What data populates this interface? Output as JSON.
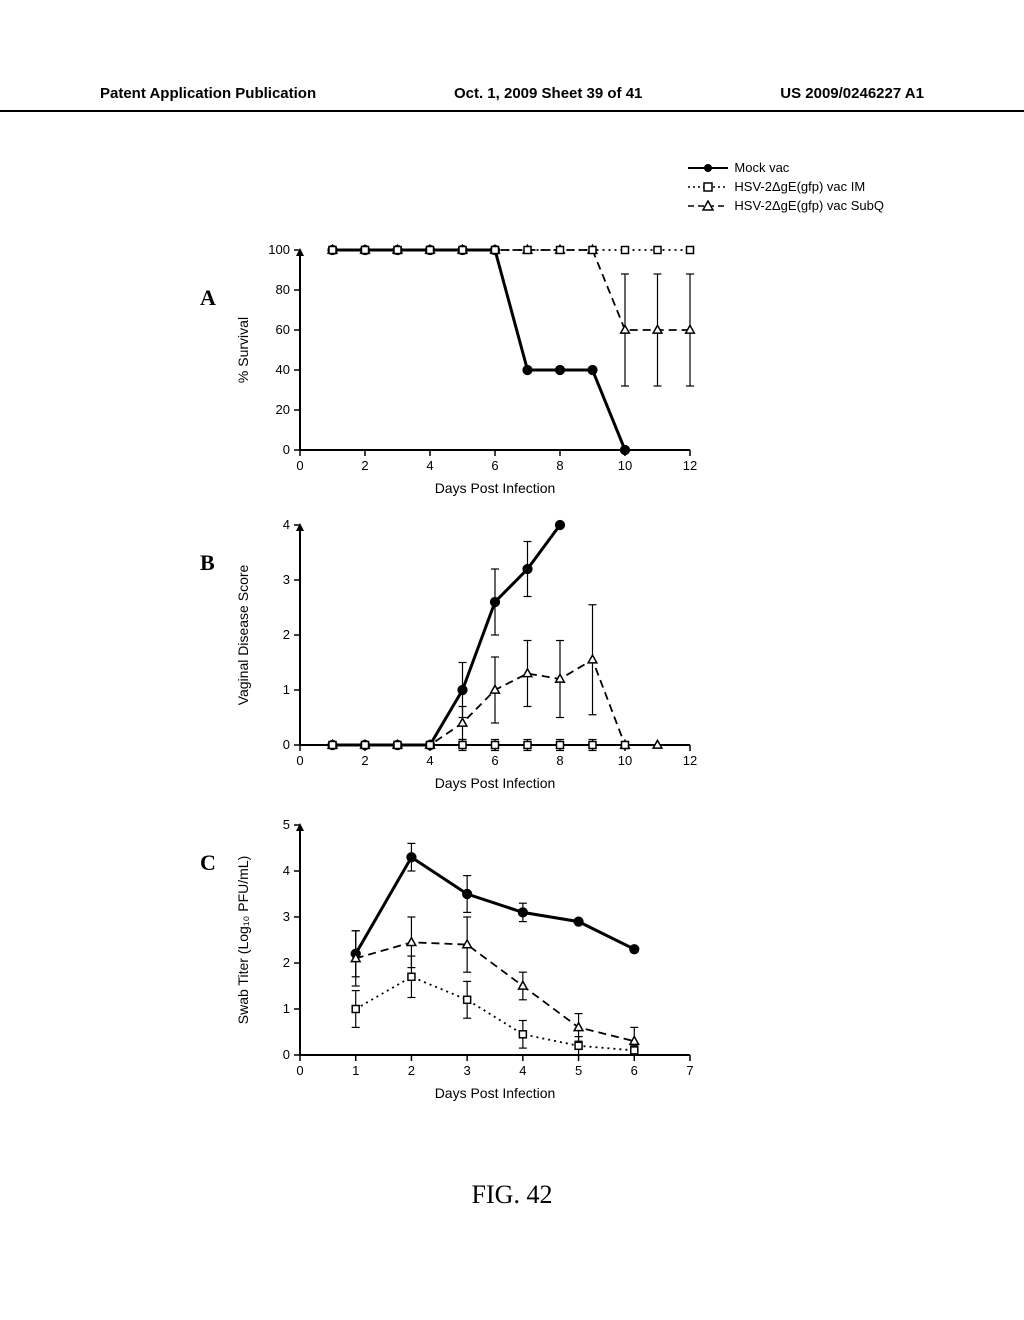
{
  "header": {
    "left": "Patent Application Publication",
    "center": "Oct. 1, 2009  Sheet 39 of 41",
    "right": "US 2009/0246227 A1"
  },
  "legend": {
    "items": [
      {
        "label": "Mock vac",
        "marker": "filled-circle",
        "line": "solid"
      },
      {
        "label": "HSV-2ΔgE(gfp) vac IM",
        "marker": "open-square",
        "line": "dotted"
      },
      {
        "label": "HSV-2ΔgE(gfp) vac SubQ",
        "marker": "open-triangle",
        "line": "dashed"
      }
    ]
  },
  "panels": {
    "A": {
      "label": "A",
      "ylabel": "% Survival",
      "xlabel": "Days Post Infection",
      "xlim": [
        0,
        12
      ],
      "xtick_step": 2,
      "ylim": [
        0,
        100
      ],
      "ytick_step": 20,
      "series": {
        "mock": {
          "x": [
            1,
            2,
            3,
            4,
            5,
            6,
            7,
            8,
            9,
            10
          ],
          "y": [
            100,
            100,
            100,
            100,
            100,
            100,
            40,
            40,
            40,
            0
          ],
          "err": [
            0,
            0,
            0,
            0,
            0,
            0,
            0,
            0,
            0,
            0
          ]
        },
        "im": {
          "x": [
            1,
            2,
            3,
            4,
            5,
            6,
            7,
            8,
            9,
            10,
            11,
            12
          ],
          "y": [
            100,
            100,
            100,
            100,
            100,
            100,
            100,
            100,
            100,
            100,
            100,
            100
          ],
          "err": [
            0,
            0,
            0,
            0,
            0,
            0,
            0,
            0,
            0,
            0,
            0,
            0
          ]
        },
        "subq": {
          "x": [
            1,
            2,
            3,
            4,
            5,
            6,
            7,
            8,
            9,
            10,
            11,
            12
          ],
          "y": [
            100,
            100,
            100,
            100,
            100,
            100,
            100,
            100,
            100,
            60,
            60,
            60
          ],
          "err": [
            0,
            0,
            0,
            0,
            0,
            0,
            0,
            0,
            0,
            28,
            28,
            28
          ]
        }
      },
      "colors": {
        "axis": "#000000",
        "line": "#000000",
        "bg": "#ffffff"
      }
    },
    "B": {
      "label": "B",
      "ylabel": "Vaginal Disease Score",
      "xlabel": "Days Post Infection",
      "xlim": [
        0,
        12
      ],
      "xtick_step": 2,
      "ylim": [
        0,
        4
      ],
      "ytick_step": 1,
      "series": {
        "mock": {
          "x": [
            1,
            2,
            3,
            4,
            5,
            6,
            7,
            8
          ],
          "y": [
            0,
            0,
            0,
            0,
            1.0,
            2.6,
            3.2,
            4.0
          ],
          "err": [
            0,
            0,
            0,
            0,
            0.5,
            0.6,
            0.5,
            0
          ]
        },
        "im": {
          "x": [
            1,
            2,
            3,
            4,
            5,
            6,
            7,
            8,
            9,
            10
          ],
          "y": [
            0,
            0,
            0,
            0,
            0,
            0,
            0,
            0,
            0,
            0
          ],
          "err": [
            0,
            0,
            0,
            0,
            0.1,
            0.1,
            0.1,
            0.1,
            0.1,
            0
          ]
        },
        "subq": {
          "x": [
            1,
            2,
            3,
            4,
            5,
            6,
            7,
            8,
            9,
            10,
            11
          ],
          "y": [
            0,
            0,
            0,
            0,
            0.4,
            1.0,
            1.3,
            1.2,
            1.55,
            0,
            0
          ],
          "err": [
            0,
            0,
            0,
            0,
            0.3,
            0.6,
            0.6,
            0.7,
            1.0,
            0,
            0
          ]
        }
      },
      "colors": {
        "axis": "#000000",
        "line": "#000000",
        "bg": "#ffffff"
      }
    },
    "C": {
      "label": "C",
      "ylabel": "Swab Titer (Log₁₀ PFU/mL)",
      "xlabel": "Days Post Infection",
      "xlim": [
        0,
        7
      ],
      "xtick_step": 1,
      "ylim": [
        0,
        5
      ],
      "ytick_step": 1,
      "series": {
        "mock": {
          "x": [
            1,
            2,
            3,
            4,
            5,
            6
          ],
          "y": [
            2.2,
            4.3,
            3.5,
            3.1,
            2.9,
            2.3
          ],
          "err": [
            0.5,
            0.3,
            0.4,
            0.2,
            0,
            0
          ]
        },
        "im": {
          "x": [
            1,
            2,
            3,
            4,
            5,
            6
          ],
          "y": [
            1.0,
            1.7,
            1.2,
            0.45,
            0.2,
            0.1
          ],
          "err": [
            0.4,
            0.45,
            0.4,
            0.3,
            0.2,
            0.1
          ]
        },
        "subq": {
          "x": [
            1,
            2,
            3,
            4,
            5,
            6
          ],
          "y": [
            2.1,
            2.45,
            2.4,
            1.5,
            0.6,
            0.3
          ],
          "err": [
            0.6,
            0.55,
            0.6,
            0.3,
            0.3,
            0.3
          ]
        }
      },
      "colors": {
        "axis": "#000000",
        "line": "#000000",
        "bg": "#ffffff"
      }
    }
  },
  "figure_label": "FIG. 42",
  "style": {
    "axis_fontsize": 13,
    "label_fontsize": 14,
    "panel_label_fontsize": 22,
    "line_width": 2.5,
    "marker_size": 7
  }
}
